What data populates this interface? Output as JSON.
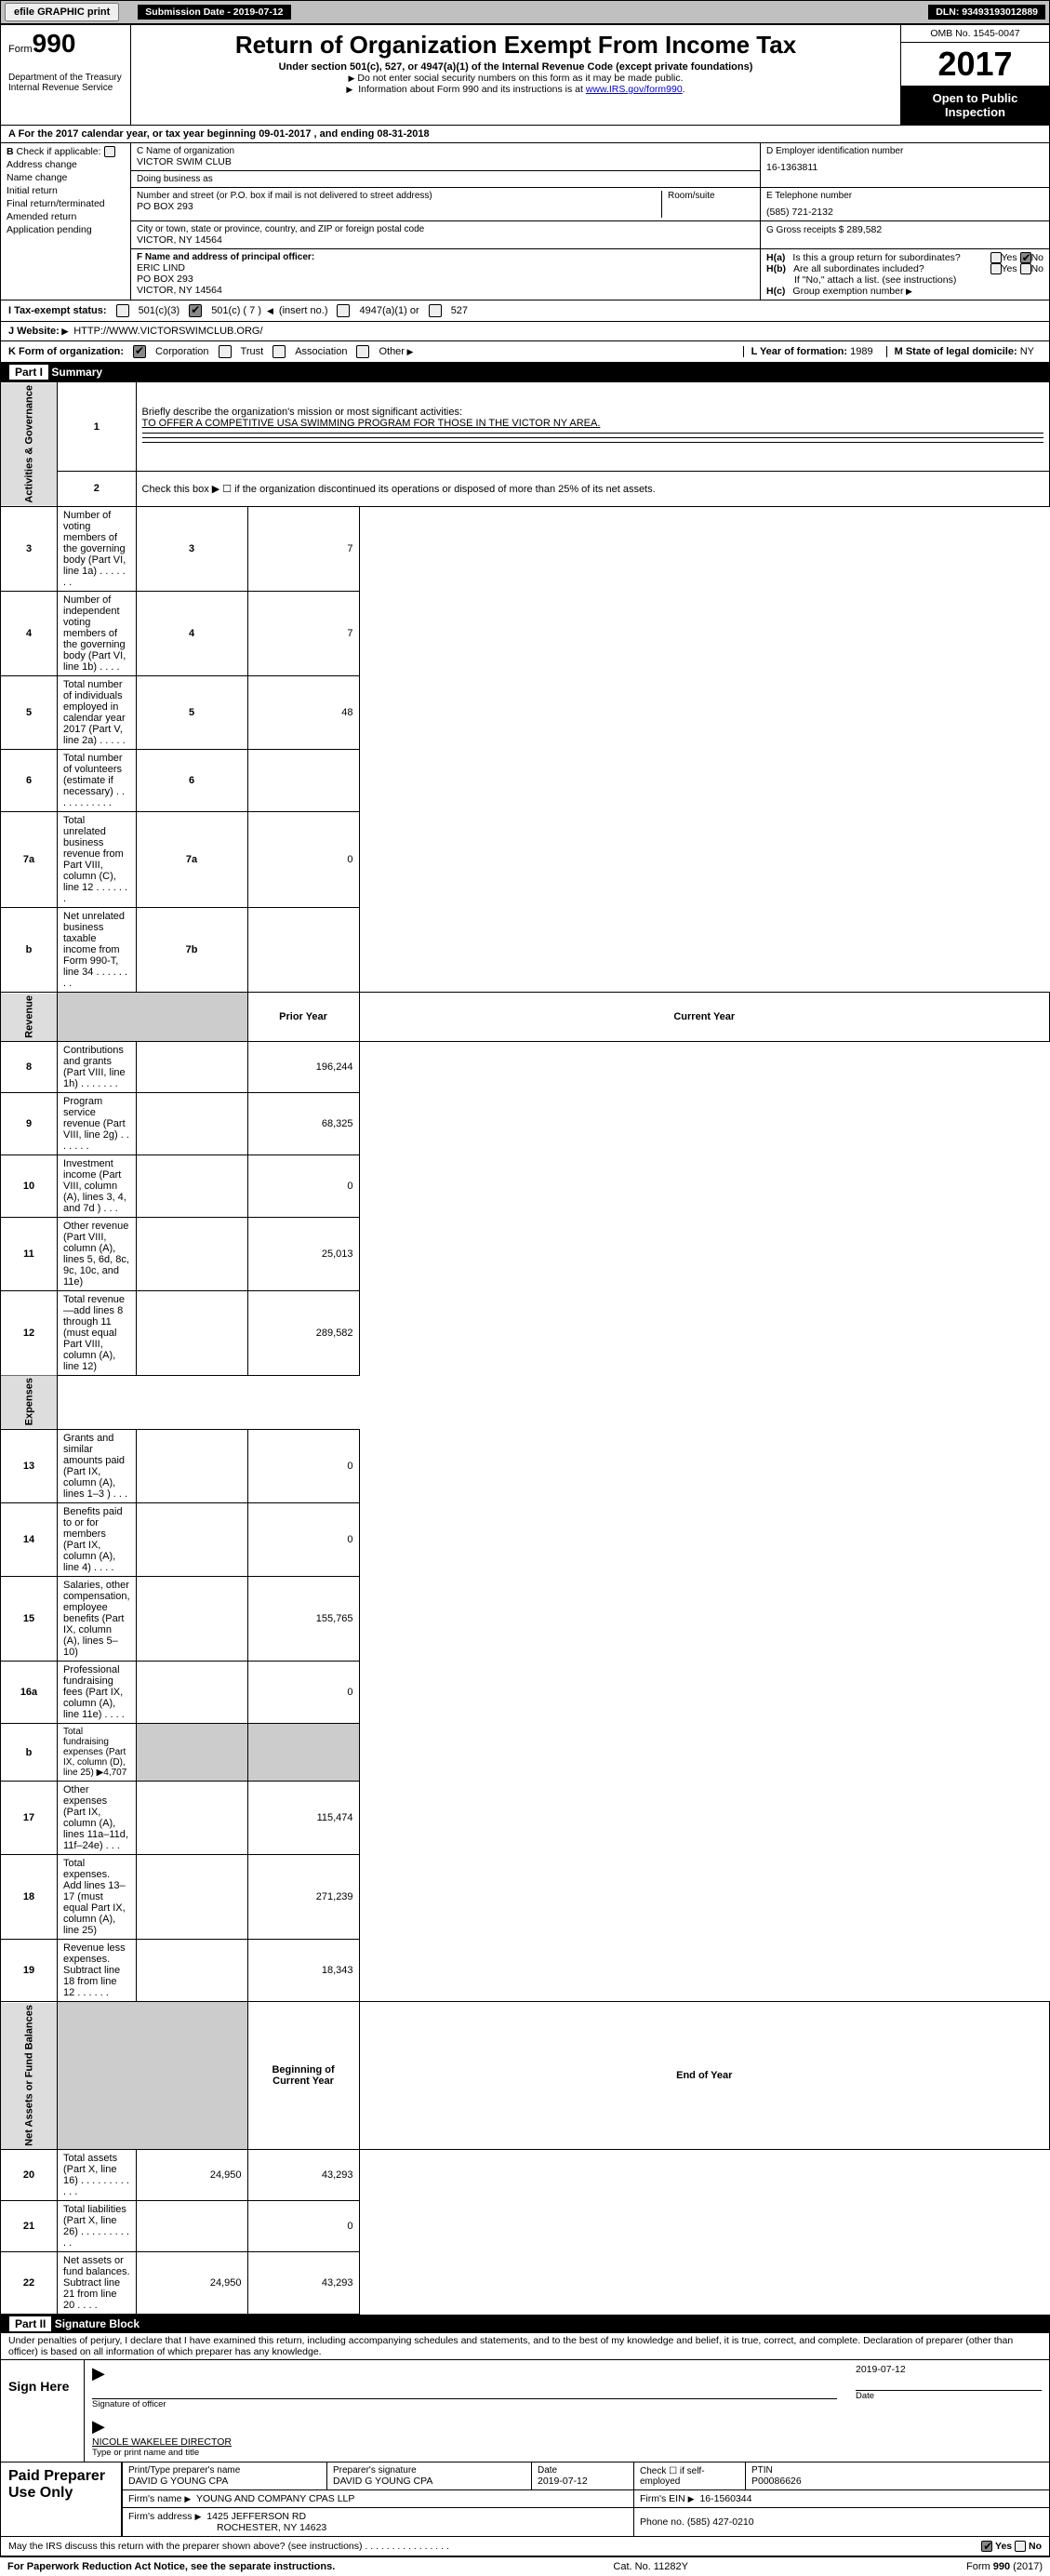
{
  "top_bar": {
    "efile_btn": "efile GRAPHIC print",
    "submission_label": "Submission Date - 2019-07-12",
    "dln": "DLN: 93493193012889"
  },
  "header": {
    "form_prefix": "Form",
    "form_number": "990",
    "dept": "Department of the Treasury\nInternal Revenue Service",
    "title": "Return of Organization Exempt From Income Tax",
    "sub": "Under section 501(c), 527, or 4947(a)(1) of the Internal Revenue Code (except private foundations)",
    "note1": "Do not enter social security numbers on this form as it may be made public.",
    "note2_pre": "Information about Form 990 and its instructions is at ",
    "note2_link": "www.IRS.gov/form990",
    "note2_post": ".",
    "omb": "OMB No. 1545-0047",
    "year": "2017",
    "open_pub": "Open to Public Inspection"
  },
  "section_a": "A   For the 2017 calendar year, or tax year beginning 09-01-2017        , and ending 08-31-2018",
  "box_b": {
    "label": "B",
    "check_if": "Check if applicable:",
    "items": [
      "Address change",
      "Name change",
      "Initial return",
      "Final return/terminated",
      "Amended return",
      "Application pending"
    ]
  },
  "box_c": {
    "name_lbl": "C Name of organization",
    "name": "VICTOR SWIM CLUB",
    "dba_lbl": "Doing business as",
    "dba": "",
    "street_lbl": "Number and street (or P.O. box if mail is not delivered to street address)",
    "street": "PO BOX 293",
    "room_lbl": "Room/suite",
    "city_lbl": "City or town, state or province, country, and ZIP or foreign postal code",
    "city": "VICTOR, NY   14564"
  },
  "box_d": {
    "lbl": "D Employer identification number",
    "val": "16-1363811"
  },
  "box_e": {
    "lbl": "E Telephone number",
    "val": "(585) 721-2132"
  },
  "box_g": {
    "lbl": "G Gross receipts $",
    "val": "289,582"
  },
  "box_f": {
    "lbl": "F Name and address of principal officer:",
    "name": "ERIC LIND",
    "addr1": "PO BOX 293",
    "addr2": "VICTOR, NY   14564"
  },
  "box_h": {
    "ha_lbl": "Is this a group return for subordinates?",
    "hb_lbl": "Are all subordinates included?",
    "hb_note": "If \"No,\" attach a list. (see instructions)",
    "hc_lbl": "Group exemption number",
    "yes": "Yes",
    "no": "No"
  },
  "row_i": {
    "lbl": "I     Tax-exempt status:",
    "opts": [
      "501(c)(3)",
      "501(c) ( 7 )",
      "(insert no.)",
      "4947(a)(1) or",
      "527"
    ]
  },
  "row_j": {
    "lbl": "J   Website:",
    "url": "HTTP://WWW.VICTORSWIMCLUB.ORG/"
  },
  "row_k": {
    "lbl": "K Form of organization:",
    "opts": [
      "Corporation",
      "Trust",
      "Association",
      "Other"
    ],
    "l_lbl": "L Year of formation:",
    "l_val": "1989",
    "m_lbl": "M State of legal domicile:",
    "m_val": "NY"
  },
  "part1": {
    "title": "Part I",
    "sub": "Summary"
  },
  "summary": {
    "side1": "Activities & Governance",
    "line1_lbl": "Briefly describe the organization's mission or most significant activities:",
    "line1_val": "TO OFFER A COMPETITIVE USA SWIMMING PROGRAM FOR THOSE IN THE VICTOR NY AREA.",
    "line2": "Check this box ▶ ☐  if the organization discontinued its operations or disposed of more than 25% of its net assets.",
    "rows_a": [
      {
        "n": "3",
        "t": "Number of voting members of the governing body (Part VI, line 1a)   .    .    .    .    .    .    .",
        "k": "3",
        "v": "7"
      },
      {
        "n": "4",
        "t": "Number of independent voting members of the governing body (Part VI, line 1b)   .    .    .    .",
        "k": "4",
        "v": "7"
      },
      {
        "n": "5",
        "t": "Total number of individuals employed in calendar year 2017 (Part V, line 2a)   .    .    .    .    .",
        "k": "5",
        "v": "48"
      },
      {
        "n": "6",
        "t": "Total number of volunteers (estimate if necessary)   .    .    .    .    .    .    .    .    .    .    .",
        "k": "6",
        "v": ""
      },
      {
        "n": "7a",
        "t": "Total unrelated business revenue from Part VIII, column (C), line 12    .    .    .    .    .    .    .",
        "k": "7a",
        "v": "0"
      },
      {
        "n": "b",
        "t": "Net unrelated business taxable income from Form 990-T, line 34   .    .    .    .    .    .    .    .",
        "k": "7b",
        "v": ""
      }
    ],
    "prior": "Prior Year",
    "current": "Current Year",
    "side2": "Revenue",
    "rows_r": [
      {
        "n": "8",
        "t": "Contributions and grants (Part VIII, line 1h)   .    .    .    .    .    .    .",
        "p": "",
        "c": "196,244"
      },
      {
        "n": "9",
        "t": "Program service revenue (Part VIII, line 2g)   .    .    .    .    .    .    .",
        "p": "",
        "c": "68,325"
      },
      {
        "n": "10",
        "t": "Investment income (Part VIII, column (A), lines 3, 4, and 7d )   .    .    .",
        "p": "",
        "c": "0"
      },
      {
        "n": "11",
        "t": "Other revenue (Part VIII, column (A), lines 5, 6d, 8c, 9c, 10c, and 11e)",
        "p": "",
        "c": "25,013"
      },
      {
        "n": "12",
        "t": "Total revenue—add lines 8 through 11 (must equal Part VIII, column (A), line 12)",
        "p": "",
        "c": "289,582"
      }
    ],
    "side3": "Expenses",
    "rows_e": [
      {
        "n": "13",
        "t": "Grants and similar amounts paid (Part IX, column (A), lines 1–3 )   .    .    .",
        "p": "",
        "c": "0"
      },
      {
        "n": "14",
        "t": "Benefits paid to or for members (Part IX, column (A), line 4)   .    .    .    .",
        "p": "",
        "c": "0"
      },
      {
        "n": "15",
        "t": "Salaries, other compensation, employee benefits (Part IX, column (A), lines 5–10)",
        "p": "",
        "c": "155,765"
      },
      {
        "n": "16a",
        "t": "Professional fundraising fees (Part IX, column (A), line 11e)   .    .    .    .",
        "p": "",
        "c": "0"
      }
    ],
    "line_b": "Total fundraising expenses (Part IX, column (D), line 25) ▶4,707",
    "rows_e2": [
      {
        "n": "17",
        "t": "Other expenses (Part IX, column (A), lines 11a–11d, 11f–24e)   .    .    .",
        "p": "",
        "c": "115,474"
      },
      {
        "n": "18",
        "t": "Total expenses. Add lines 13–17 (must equal Part IX, column (A), line 25)",
        "p": "",
        "c": "271,239"
      },
      {
        "n": "19",
        "t": "Revenue less expenses. Subtract line 18 from line 12   .    .    .    .    .    .",
        "p": "",
        "c": "18,343"
      }
    ],
    "side4": "Net Assets or Fund Balances",
    "boy": "Beginning of Current Year",
    "eoy": "End of Year",
    "rows_n": [
      {
        "n": "20",
        "t": "Total assets (Part X, line 16)   .    .    .    .    .    .    .    .    .    .    .    .",
        "p": "24,950",
        "c": "43,293"
      },
      {
        "n": "21",
        "t": "Total liabilities (Part X, line 26)   .    .    .    .    .    .    .    .    .    .    .",
        "p": "",
        "c": "0"
      },
      {
        "n": "22",
        "t": "Net assets or fund balances. Subtract line 21 from line 20   .    .    .    .",
        "p": "24,950",
        "c": "43,293"
      }
    ]
  },
  "part2": {
    "title": "Part II",
    "sub": "Signature Block"
  },
  "sig": {
    "decl": "Under penalties of perjury, I declare that I have examined this return, including accompanying schedules and statements, and to the best of my knowledge and belief, it is true, correct, and complete. Declaration of preparer (other than officer) is based on all information of which preparer has any knowledge.",
    "sign_here": "Sign Here",
    "sig_officer": "Signature of officer",
    "sig_date": "2019-07-12",
    "date_lbl": "Date",
    "name": "NICOLE WAKELEE  DIRECTOR",
    "name_lbl": "Type or print name and title"
  },
  "prep": {
    "title": "Paid Preparer Use Only",
    "h1": "Print/Type preparer's name",
    "v1": "DAVID G YOUNG CPA",
    "h2": "Preparer's signature",
    "v2": "DAVID G YOUNG CPA",
    "h3": "Date",
    "v3": "2019-07-12",
    "h4": "Check ☐ if self-employed",
    "h5": "PTIN",
    "v5": "P00086626",
    "firm_name_lbl": "Firm's name",
    "firm_name": "YOUNG AND COMPANY CPAS LLP",
    "firm_ein_lbl": "Firm's EIN",
    "firm_ein": "16-1560344",
    "firm_addr_lbl": "Firm's address",
    "firm_addr1": "1425 JEFFERSON RD",
    "firm_addr2": "ROCHESTER, NY   14623",
    "phone_lbl": "Phone no.",
    "phone": "(585) 427-0210",
    "irs_q": "May the IRS discuss this return with the preparer shown above? (see instructions)   .    .    .    .    .    .    .    .    .    .    .    .    .    .    .    .",
    "yes": "Yes",
    "no": "No"
  },
  "footer": {
    "left": "For Paperwork Reduction Act Notice, see the separate instructions.",
    "mid": "Cat. No. 11282Y",
    "right_pre": "Form ",
    "right_bold": "990",
    "right_post": " (2017)"
  }
}
